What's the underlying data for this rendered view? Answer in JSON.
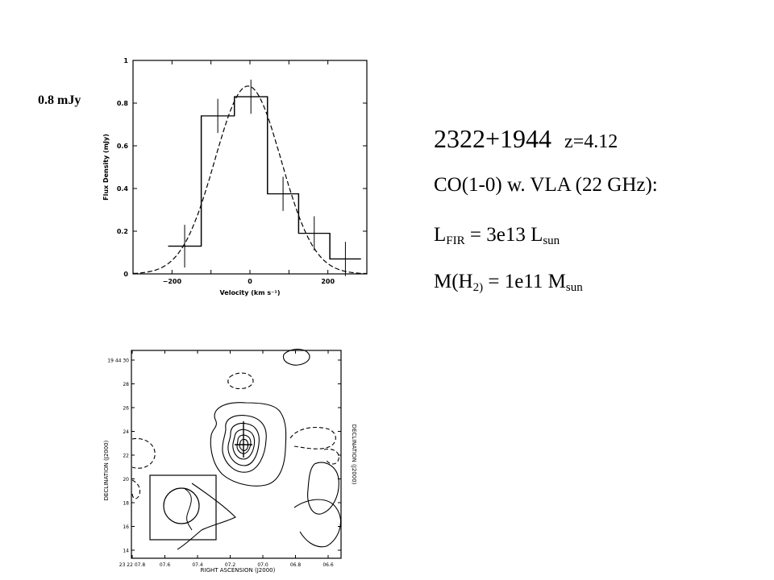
{
  "annotation": {
    "peak_label": "0.8 mJy"
  },
  "info": {
    "source_name": "2322+1944",
    "redshift": "z=4.12",
    "co_line": "CO(1-0) w. VLA (22 GHz):",
    "lfir_prefix": "L",
    "lfir_sub": "FIR",
    "lfir_eq": " = 3e13 L",
    "lfir_unit_sub": "sun",
    "mh2_prefix": "M(H",
    "mh2_sub": "2)",
    "mh2_eq": " = 1e11 M",
    "mh2_unit_sub": "sun"
  },
  "chart_data": [
    {
      "type": "bar",
      "xlabel": "Velocity (km s⁻¹)",
      "ylabel": "Flux Density (mJy)",
      "xlim": [
        -300,
        300
      ],
      "ylim": [
        0,
        1
      ],
      "xticks": [
        -200,
        -100,
        0,
        100,
        200
      ],
      "xtick_labels": [
        "−200",
        "0",
        "200"
      ],
      "yticks": [
        0,
        0.2,
        0.4,
        0.6,
        0.8,
        1
      ],
      "ytick_labels": [
        "0",
        "0.2",
        "0.4",
        "0.6",
        "0.8",
        "1"
      ],
      "bins": [
        {
          "x0": -210,
          "x1": -125,
          "y": 0.13,
          "err": 0.1
        },
        {
          "x0": -125,
          "x1": -40,
          "y": 0.74,
          "err": 0.08
        },
        {
          "x0": -40,
          "x1": 45,
          "y": 0.83,
          "err": 0.08
        },
        {
          "x0": 45,
          "x1": 125,
          "y": 0.375,
          "err": 0.08
        },
        {
          "x0": 125,
          "x1": 205,
          "y": 0.19,
          "err": 0.08
        },
        {
          "x0": 205,
          "x1": 285,
          "y": 0.07,
          "err": 0.08
        }
      ],
      "gaussian_fit": {
        "amplitude": 0.88,
        "center": -5,
        "sigma": 85
      },
      "baseline": 0
    },
    {
      "type": "contour",
      "ylabel": "DECLINATION (J2000)",
      "xlabel": "RIGHT ASCENSION (J2000)",
      "ytick_labels": [
        "19 44 30",
        "28",
        "26",
        "24",
        "22",
        "20",
        "18",
        "16",
        "14"
      ],
      "xtick_labels": [
        "23 22 07.8",
        "07.6",
        "07.4",
        "07.2",
        "07.0",
        "06.8",
        "06.6"
      ]
    }
  ]
}
